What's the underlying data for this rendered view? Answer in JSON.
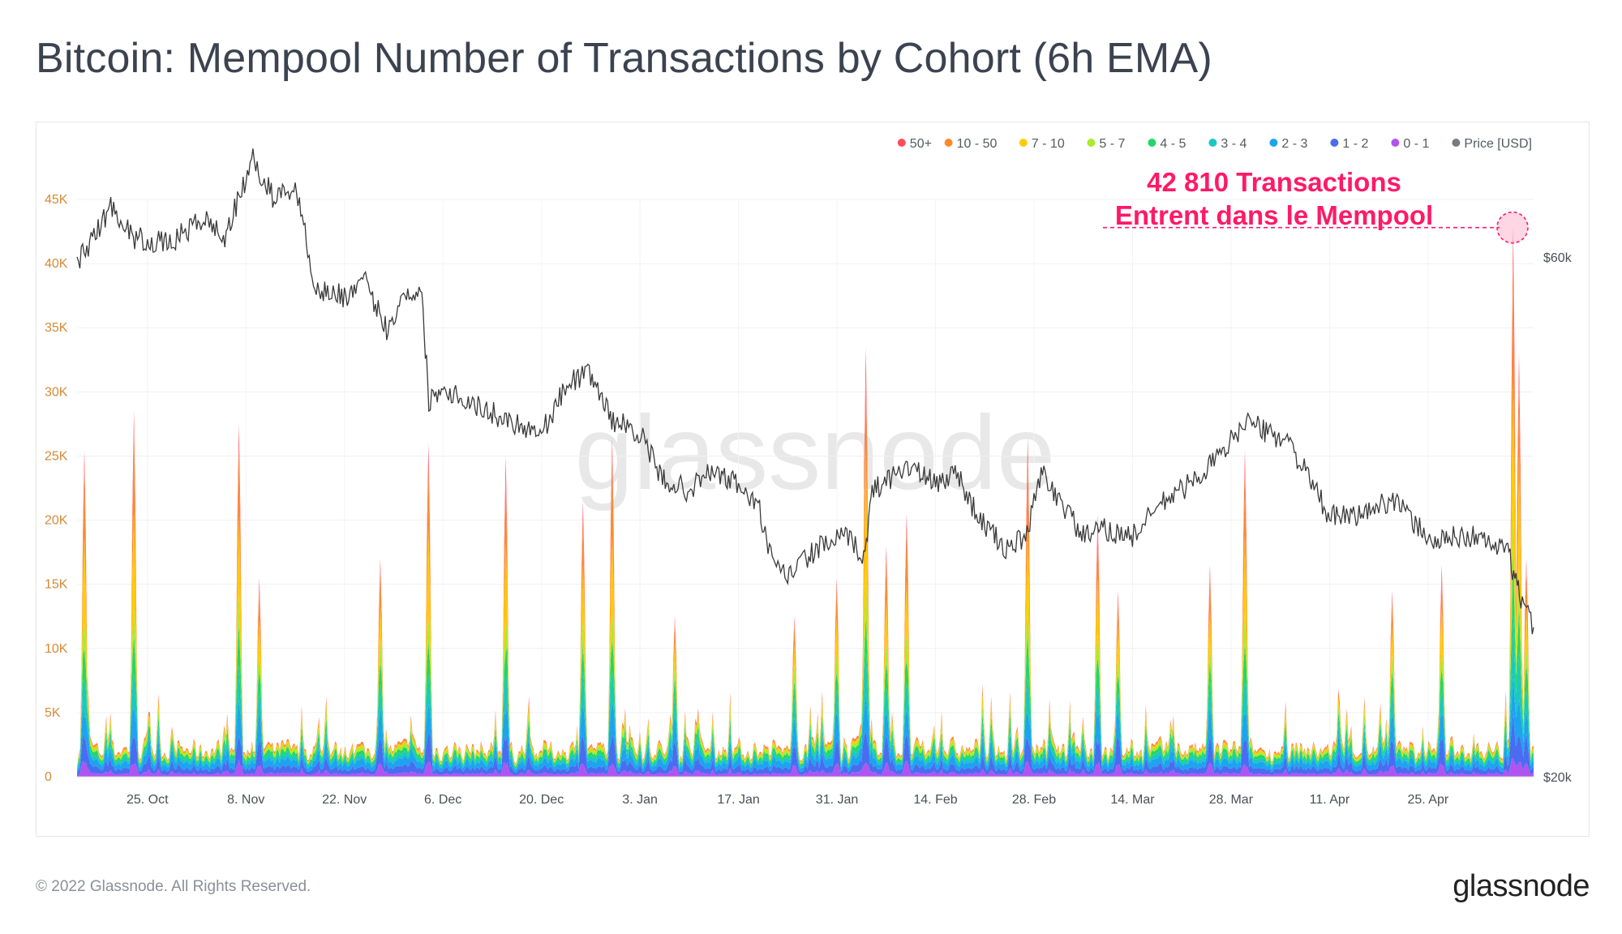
{
  "title": "Bitcoin: Mempool Number of Transactions by Cohort (6h EMA)",
  "footer": {
    "copyright": "© 2022 Glassnode. All Rights Reserved.",
    "logo": "glassnode"
  },
  "watermark": "glassnode",
  "colors": {
    "cohorts": [
      "#ff4d5a",
      "#ff8a2a",
      "#ffcc00",
      "#a8ec2e",
      "#22d66c",
      "#1ac8c2",
      "#1ea3f0",
      "#4a6cf0",
      "#b054f0"
    ],
    "price": "#3a3a3a",
    "annotation": "#ff1a66"
  },
  "chart_data": {
    "type": "area",
    "stacked": true,
    "legend_placement": "top-right",
    "x_range": [
      "2021-10-15",
      "2022-05-10"
    ],
    "x_ticks": [
      "25. Oct",
      "8. Nov",
      "22. Nov",
      "6. Dec",
      "20. Dec",
      "3. Jan",
      "17. Jan",
      "31. Jan",
      "14. Feb",
      "28. Feb",
      "14. Mar",
      "28. Mar",
      "11. Apr",
      "25. Apr"
    ],
    "y_ticks": [
      "0",
      "5K",
      "10K",
      "15K",
      "20K",
      "25K",
      "30K",
      "35K",
      "40K",
      "45K"
    ],
    "ylim": [
      0,
      45000
    ],
    "y2_ticks": [
      "$20k",
      "$60k"
    ],
    "y2lim": [
      20000,
      60000
    ],
    "legend": [
      "50+",
      "10 - 50",
      "7 - 10",
      "5 - 7",
      "4 - 5",
      "3 - 4",
      "2 - 3",
      "1 - 2",
      "0 - 1",
      "Price [USD]"
    ],
    "annotation": {
      "line1": "42 810 Transactions",
      "line2": "Entrent dans le Mempool",
      "value": 42810,
      "date": "2022-05-07"
    },
    "spikes": [
      {
        "date": "2021-10-16",
        "value": 25500
      },
      {
        "date": "2021-10-23",
        "value": 28500
      },
      {
        "date": "2021-11-07",
        "value": 27500
      },
      {
        "date": "2021-11-10",
        "value": 15500
      },
      {
        "date": "2021-11-27",
        "value": 17000
      },
      {
        "date": "2021-12-04",
        "value": 26000
      },
      {
        "date": "2021-12-15",
        "value": 25000
      },
      {
        "date": "2021-12-26",
        "value": 21500
      },
      {
        "date": "2021-12-30",
        "value": 26500
      },
      {
        "date": "2022-01-08",
        "value": 12500
      },
      {
        "date": "2022-01-25",
        "value": 12500
      },
      {
        "date": "2022-01-31",
        "value": 15500
      },
      {
        "date": "2022-02-04",
        "value": 33500
      },
      {
        "date": "2022-02-07",
        "value": 18000
      },
      {
        "date": "2022-02-10",
        "value": 20500
      },
      {
        "date": "2022-02-27",
        "value": 26500
      },
      {
        "date": "2022-03-09",
        "value": 20500
      },
      {
        "date": "2022-03-12",
        "value": 14500
      },
      {
        "date": "2022-03-25",
        "value": 16500
      },
      {
        "date": "2022-03-30",
        "value": 25500
      },
      {
        "date": "2022-04-20",
        "value": 14500
      },
      {
        "date": "2022-04-27",
        "value": 16500
      },
      {
        "date": "2022-05-07",
        "value": 42810
      },
      {
        "date": "2022-05-08",
        "value": 33000
      },
      {
        "date": "2022-05-09",
        "value": 17000
      }
    ],
    "price_series": [
      {
        "date": "2021-10-15",
        "value": 59500
      },
      {
        "date": "2021-10-20",
        "value": 64000
      },
      {
        "date": "2021-10-23",
        "value": 61500
      },
      {
        "date": "2021-10-28",
        "value": 61000
      },
      {
        "date": "2021-11-02",
        "value": 63000
      },
      {
        "date": "2021-11-05",
        "value": 61500
      },
      {
        "date": "2021-11-09",
        "value": 67500
      },
      {
        "date": "2021-11-12",
        "value": 64500
      },
      {
        "date": "2021-11-15",
        "value": 65500
      },
      {
        "date": "2021-11-18",
        "value": 57500
      },
      {
        "date": "2021-11-22",
        "value": 57000
      },
      {
        "date": "2021-11-25",
        "value": 58000
      },
      {
        "date": "2021-11-28",
        "value": 54500
      },
      {
        "date": "2021-12-01",
        "value": 57500
      },
      {
        "date": "2021-12-03",
        "value": 57000
      },
      {
        "date": "2021-12-04",
        "value": 49000
      },
      {
        "date": "2021-12-06",
        "value": 50000
      },
      {
        "date": "2021-12-11",
        "value": 48500
      },
      {
        "date": "2021-12-15",
        "value": 47500
      },
      {
        "date": "2021-12-20",
        "value": 46500
      },
      {
        "date": "2021-12-24",
        "value": 50500
      },
      {
        "date": "2021-12-27",
        "value": 51000
      },
      {
        "date": "2021-12-30",
        "value": 47500
      },
      {
        "date": "2022-01-03",
        "value": 46500
      },
      {
        "date": "2022-01-06",
        "value": 43000
      },
      {
        "date": "2022-01-10",
        "value": 42000
      },
      {
        "date": "2022-01-13",
        "value": 43500
      },
      {
        "date": "2022-01-17",
        "value": 42500
      },
      {
        "date": "2022-01-20",
        "value": 40500
      },
      {
        "date": "2022-01-22",
        "value": 36000
      },
      {
        "date": "2022-01-24",
        "value": 35500
      },
      {
        "date": "2022-01-28",
        "value": 37500
      },
      {
        "date": "2022-02-01",
        "value": 38500
      },
      {
        "date": "2022-02-04",
        "value": 37000
      },
      {
        "date": "2022-02-05",
        "value": 42000
      },
      {
        "date": "2022-02-10",
        "value": 44000
      },
      {
        "date": "2022-02-14",
        "value": 42500
      },
      {
        "date": "2022-02-17",
        "value": 43500
      },
      {
        "date": "2022-02-20",
        "value": 40000
      },
      {
        "date": "2022-02-24",
        "value": 37500
      },
      {
        "date": "2022-02-27",
        "value": 38500
      },
      {
        "date": "2022-03-01",
        "value": 43500
      },
      {
        "date": "2022-03-04",
        "value": 41000
      },
      {
        "date": "2022-03-07",
        "value": 38500
      },
      {
        "date": "2022-03-10",
        "value": 39000
      },
      {
        "date": "2022-03-14",
        "value": 38500
      },
      {
        "date": "2022-03-18",
        "value": 41000
      },
      {
        "date": "2022-03-22",
        "value": 42500
      },
      {
        "date": "2022-03-27",
        "value": 45000
      },
      {
        "date": "2022-03-30",
        "value": 47500
      },
      {
        "date": "2022-04-02",
        "value": 46500
      },
      {
        "date": "2022-04-05",
        "value": 46000
      },
      {
        "date": "2022-04-08",
        "value": 43000
      },
      {
        "date": "2022-04-11",
        "value": 40000
      },
      {
        "date": "2022-04-14",
        "value": 40000
      },
      {
        "date": "2022-04-17",
        "value": 40500
      },
      {
        "date": "2022-04-20",
        "value": 41500
      },
      {
        "date": "2022-04-23",
        "value": 39500
      },
      {
        "date": "2022-04-26",
        "value": 38000
      },
      {
        "date": "2022-04-29",
        "value": 38500
      },
      {
        "date": "2022-05-02",
        "value": 38500
      },
      {
        "date": "2022-05-05",
        "value": 37500
      },
      {
        "date": "2022-05-06",
        "value": 38000
      },
      {
        "date": "2022-05-07",
        "value": 36000
      },
      {
        "date": "2022-05-08",
        "value": 34000
      },
      {
        "date": "2022-05-10",
        "value": 31500
      }
    ]
  }
}
